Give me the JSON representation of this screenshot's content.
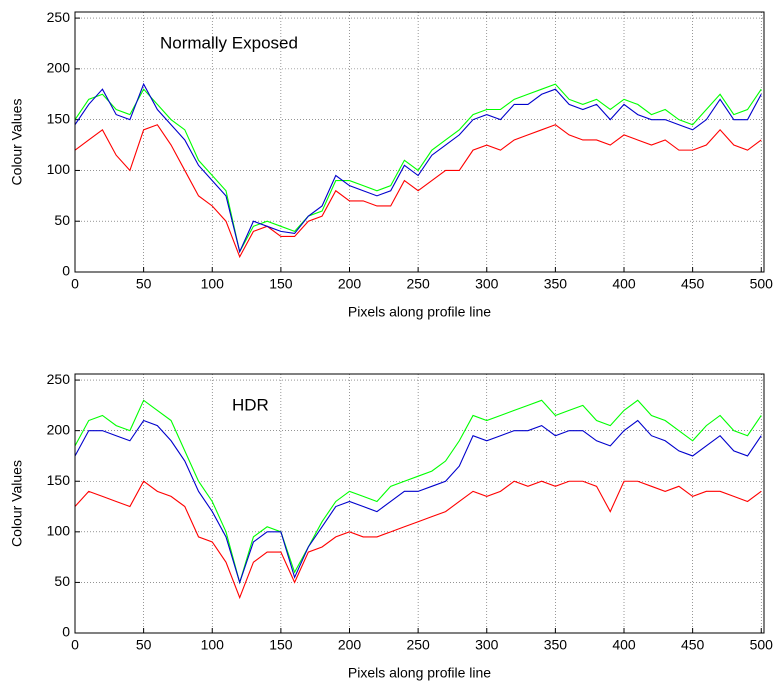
{
  "chart_data": [
    {
      "type": "line",
      "annotation": "Normally Exposed",
      "xlabel": "Pixels along profile line",
      "ylabel": "Colour Values",
      "xlim": [
        0,
        502
      ],
      "ylim": [
        0,
        256
      ],
      "xticks": [
        0,
        50,
        100,
        150,
        200,
        250,
        300,
        350,
        400,
        450,
        500
      ],
      "yticks": [
        0,
        50,
        100,
        150,
        200,
        250
      ],
      "grid": true,
      "x": [
        0,
        10,
        20,
        30,
        40,
        50,
        60,
        70,
        80,
        90,
        100,
        110,
        120,
        130,
        140,
        150,
        160,
        170,
        180,
        190,
        200,
        210,
        220,
        230,
        240,
        250,
        260,
        270,
        280,
        290,
        300,
        310,
        320,
        330,
        340,
        350,
        360,
        370,
        380,
        390,
        400,
        410,
        420,
        430,
        440,
        450,
        460,
        470,
        480,
        490,
        500
      ],
      "series": [
        {
          "color": "#00ff00",
          "values": [
            150,
            170,
            175,
            160,
            155,
            180,
            165,
            150,
            140,
            110,
            95,
            80,
            20,
            45,
            50,
            45,
            40,
            55,
            60,
            90,
            90,
            85,
            80,
            85,
            110,
            100,
            120,
            130,
            140,
            155,
            160,
            160,
            170,
            175,
            180,
            185,
            170,
            165,
            170,
            160,
            170,
            165,
            155,
            160,
            150,
            145,
            160,
            175,
            155,
            160,
            180
          ]
        },
        {
          "color": "#ff0000",
          "values": [
            120,
            130,
            140,
            115,
            100,
            140,
            145,
            125,
            100,
            75,
            65,
            50,
            15,
            40,
            45,
            35,
            35,
            50,
            55,
            80,
            70,
            70,
            65,
            65,
            90,
            80,
            90,
            100,
            100,
            120,
            125,
            120,
            130,
            135,
            140,
            145,
            135,
            130,
            130,
            125,
            135,
            130,
            125,
            130,
            120,
            120,
            125,
            140,
            125,
            120,
            130
          ]
        },
        {
          "color": "#0000cc",
          "values": [
            145,
            165,
            180,
            155,
            150,
            185,
            160,
            145,
            130,
            105,
            90,
            75,
            20,
            50,
            45,
            40,
            38,
            55,
            65,
            95,
            85,
            80,
            75,
            80,
            105,
            95,
            115,
            125,
            135,
            150,
            155,
            150,
            165,
            165,
            175,
            180,
            165,
            160,
            165,
            150,
            165,
            155,
            150,
            150,
            145,
            140,
            150,
            170,
            150,
            150,
            175
          ]
        }
      ]
    },
    {
      "type": "line",
      "annotation": "HDR",
      "xlabel": "Pixels along profile line",
      "ylabel": "Colour Values",
      "xlim": [
        0,
        502
      ],
      "ylim": [
        0,
        256
      ],
      "xticks": [
        0,
        50,
        100,
        150,
        200,
        250,
        300,
        350,
        400,
        450,
        500
      ],
      "yticks": [
        0,
        50,
        100,
        150,
        200,
        250
      ],
      "grid": true,
      "x": [
        0,
        10,
        20,
        30,
        40,
        50,
        60,
        70,
        80,
        90,
        100,
        110,
        120,
        130,
        140,
        150,
        160,
        170,
        180,
        190,
        200,
        210,
        220,
        230,
        240,
        250,
        260,
        270,
        280,
        290,
        300,
        310,
        320,
        330,
        340,
        350,
        360,
        370,
        380,
        390,
        400,
        410,
        420,
        430,
        440,
        450,
        460,
        470,
        480,
        490,
        500
      ],
      "series": [
        {
          "color": "#00ff00",
          "values": [
            185,
            210,
            215,
            205,
            200,
            230,
            220,
            210,
            180,
            150,
            130,
            100,
            50,
            95,
            105,
            100,
            60,
            85,
            110,
            130,
            140,
            135,
            130,
            145,
            150,
            155,
            160,
            170,
            190,
            215,
            210,
            215,
            220,
            225,
            230,
            215,
            220,
            225,
            210,
            205,
            220,
            230,
            215,
            210,
            200,
            190,
            205,
            215,
            200,
            195,
            215
          ]
        },
        {
          "color": "#ff0000",
          "values": [
            125,
            140,
            135,
            130,
            125,
            150,
            140,
            135,
            125,
            95,
            90,
            70,
            35,
            70,
            80,
            80,
            50,
            80,
            85,
            95,
            100,
            95,
            95,
            100,
            105,
            110,
            115,
            120,
            130,
            140,
            135,
            140,
            150,
            145,
            150,
            145,
            150,
            150,
            145,
            120,
            150,
            150,
            145,
            140,
            145,
            135,
            140,
            140,
            135,
            130,
            140
          ]
        },
        {
          "color": "#0000cc",
          "values": [
            175,
            200,
            200,
            195,
            190,
            210,
            205,
            190,
            170,
            140,
            120,
            95,
            50,
            90,
            100,
            100,
            55,
            85,
            105,
            125,
            130,
            125,
            120,
            130,
            140,
            140,
            145,
            150,
            165,
            195,
            190,
            195,
            200,
            200,
            205,
            195,
            200,
            200,
            190,
            185,
            200,
            210,
            195,
            190,
            180,
            175,
            185,
            195,
            180,
            175,
            195
          ]
        }
      ]
    }
  ]
}
